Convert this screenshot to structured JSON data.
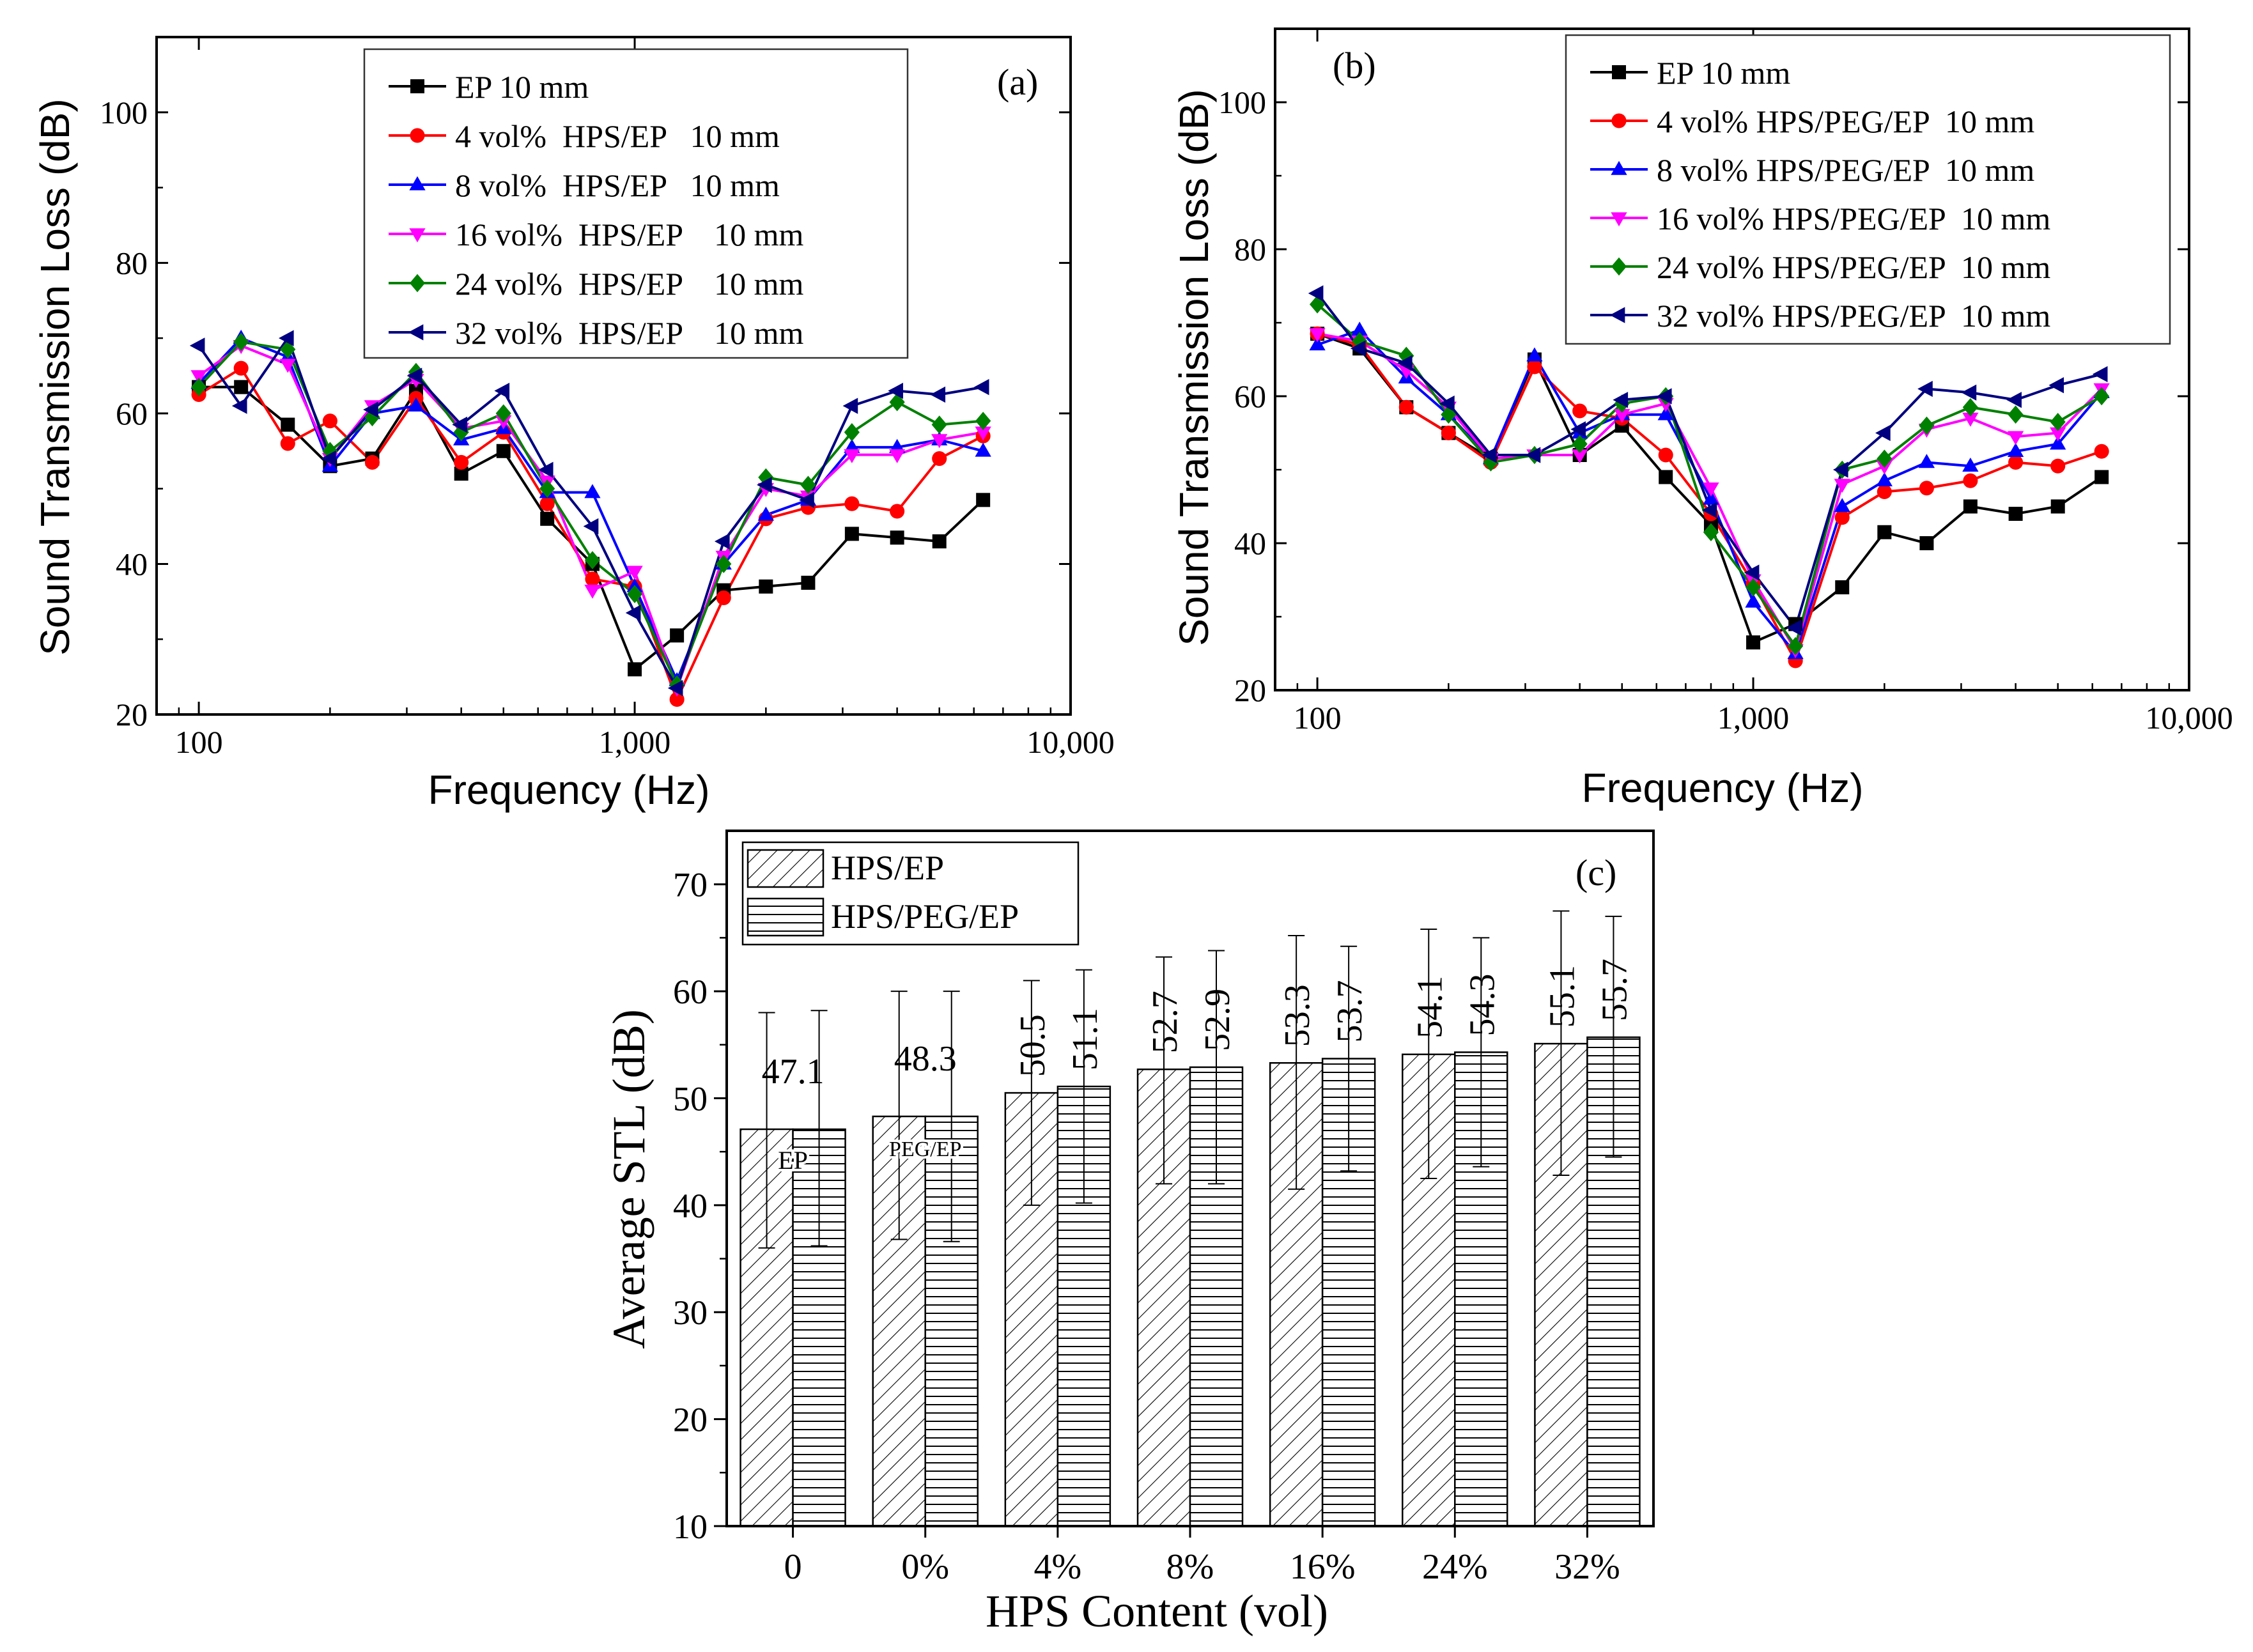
{
  "chart_data": [
    {
      "type": "line",
      "panel_label": "(a)",
      "xlabel": "Frequency (Hz)",
      "ylabel": "Sound Transmission Loss (dB)",
      "xscale": "log",
      "xlim": [
        80,
        10000
      ],
      "ylim": [
        20,
        110
      ],
      "xticks": [
        100,
        1000,
        10000
      ],
      "xtick_labels": [
        "100",
        "1,000",
        "10,000"
      ],
      "yticks": [
        20,
        40,
        60,
        80,
        100
      ],
      "ytick_labels": [
        "20",
        "40",
        "60",
        "80",
        "100"
      ],
      "legend_position": "top-center",
      "x": [
        100,
        125,
        160,
        200,
        250,
        315,
        400,
        500,
        630,
        800,
        1000,
        1250,
        1600,
        2000,
        2500,
        3150,
        4000,
        5000,
        6300
      ],
      "series": [
        {
          "name": "EP 10 mm",
          "color": "#000000",
          "marker": "square",
          "values": [
            63.5,
            63.5,
            58.5,
            53.0,
            54.0,
            63.0,
            52.0,
            55.0,
            46.0,
            40.0,
            26.0,
            30.5,
            36.5,
            37.0,
            37.5,
            44.0,
            43.5,
            43.0,
            48.5
          ]
        },
        {
          "name": "4 vol%  HPS/EP   10 mm",
          "color": "#ff0000",
          "marker": "circle",
          "values": [
            62.5,
            66.0,
            56.0,
            59.0,
            53.5,
            62.0,
            53.5,
            57.5,
            48.0,
            38.0,
            37.0,
            22.0,
            35.5,
            46.0,
            47.5,
            48.0,
            47.0,
            54.0,
            57.0
          ]
        },
        {
          "name": "8 vol%  HPS/EP   10 mm",
          "color": "#0000ff",
          "marker": "triangle-up",
          "values": [
            64.0,
            70.0,
            67.5,
            53.0,
            60.0,
            61.0,
            56.5,
            58.0,
            49.5,
            49.5,
            37.0,
            24.5,
            40.0,
            46.5,
            48.5,
            55.5,
            55.5,
            56.5,
            55.0
          ]
        },
        {
          "name": "16 vol%  HPS/EP    10 mm",
          "color": "#ff00ff",
          "marker": "triangle-down",
          "values": [
            65.0,
            69.0,
            66.5,
            54.0,
            61.0,
            64.5,
            58.0,
            59.0,
            51.0,
            36.5,
            39.0,
            23.5,
            41.0,
            50.0,
            49.0,
            54.5,
            54.5,
            56.5,
            57.5
          ]
        },
        {
          "name": "24 vol%  HPS/EP    10 mm",
          "color": "#008000",
          "marker": "diamond",
          "values": [
            63.5,
            69.5,
            68.5,
            55.0,
            59.5,
            65.5,
            57.5,
            60.0,
            50.0,
            40.5,
            36.0,
            24.0,
            40.0,
            51.5,
            50.5,
            57.5,
            61.5,
            58.5,
            59.0
          ]
        },
        {
          "name": "32 vol%  HPS/EP    10 mm",
          "color": "#000080",
          "marker": "triangle-left",
          "values": [
            69.0,
            61.0,
            70.0,
            54.0,
            60.5,
            65.0,
            58.5,
            63.0,
            52.5,
            45.0,
            33.5,
            23.5,
            43.0,
            50.5,
            48.5,
            61.0,
            63.0,
            62.5,
            63.5
          ]
        }
      ]
    },
    {
      "type": "line",
      "panel_label": "(b)",
      "xlabel": "Frequency (Hz)",
      "ylabel": "Sound Transmission Loss (dB)",
      "xscale": "log",
      "xlim": [
        80,
        10000
      ],
      "ylim": [
        20,
        110
      ],
      "xticks": [
        100,
        1000,
        10000
      ],
      "xtick_labels": [
        "100",
        "1,000",
        "10,000"
      ],
      "yticks": [
        20,
        40,
        60,
        80,
        100
      ],
      "ytick_labels": [
        "20",
        "40",
        "60",
        "80",
        "100"
      ],
      "legend_position": "top-right",
      "x": [
        100,
        125,
        160,
        200,
        250,
        315,
        400,
        500,
        630,
        800,
        1000,
        1250,
        1600,
        2000,
        2500,
        3150,
        4000,
        5000,
        6300
      ],
      "series": [
        {
          "name": "EP 10 mm",
          "color": "#000000",
          "marker": "square",
          "values": [
            68.5,
            66.5,
            58.5,
            55.0,
            51.5,
            65.0,
            52.0,
            56.0,
            49.0,
            42.5,
            26.5,
            29.0,
            34.0,
            41.5,
            40.0,
            45.0,
            44.0,
            45.0,
            49.0
          ]
        },
        {
          "name": "4 vol% HPS/PEG/EP  10 mm",
          "color": "#ff0000",
          "marker": "circle",
          "values": [
            68.5,
            67.0,
            58.5,
            55.0,
            51.0,
            64.0,
            58.0,
            57.0,
            52.0,
            44.0,
            34.5,
            24.0,
            43.5,
            47.0,
            47.5,
            48.5,
            51.0,
            50.5,
            52.5
          ]
        },
        {
          "name": "8 vol% HPS/PEG/EP  10 mm",
          "color": "#0000ff",
          "marker": "triangle-up",
          "values": [
            67.0,
            69.0,
            62.5,
            57.5,
            51.5,
            65.5,
            55.0,
            57.5,
            57.5,
            46.0,
            32.0,
            25.0,
            45.0,
            48.5,
            51.0,
            50.5,
            52.5,
            53.5,
            60.5
          ]
        },
        {
          "name": "16 vol% HPS/PEG/EP  10 mm",
          "color": "#ff00ff",
          "marker": "triangle-down",
          "values": [
            68.5,
            67.5,
            63.5,
            58.5,
            51.5,
            52.0,
            52.0,
            57.5,
            59.0,
            47.5,
            35.0,
            25.5,
            48.0,
            50.5,
            55.5,
            57.0,
            54.5,
            55.0,
            61.0
          ]
        },
        {
          "name": "24 vol% HPS/PEG/EP  10 mm",
          "color": "#008000",
          "marker": "diamond",
          "values": [
            72.5,
            67.5,
            65.5,
            57.5,
            51.0,
            52.0,
            53.5,
            59.0,
            60.0,
            41.5,
            34.0,
            26.0,
            50.0,
            51.5,
            56.0,
            58.5,
            57.5,
            56.5,
            60.0
          ]
        },
        {
          "name": "32 vol% HPS/PEG/EP  10 mm",
          "color": "#000080",
          "marker": "triangle-left",
          "values": [
            74.0,
            66.5,
            64.5,
            59.0,
            52.0,
            52.0,
            55.5,
            59.5,
            60.0,
            44.5,
            36.0,
            28.5,
            50.0,
            55.0,
            61.0,
            60.5,
            59.5,
            61.5,
            63.0
          ]
        }
      ]
    },
    {
      "type": "bar",
      "panel_label": "(c)",
      "xlabel": "HPS Content (vol)",
      "ylabel": "Average STL (dB)",
      "ylim": [
        10,
        75
      ],
      "yticks": [
        10,
        20,
        30,
        40,
        50,
        60,
        70
      ],
      "ytick_labels": [
        "10",
        "20",
        "30",
        "40",
        "50",
        "60",
        "70"
      ],
      "legend_position": "top-left",
      "categories": [
        "0",
        "0%",
        "4%",
        "8%",
        "16%",
        "24%",
        "32%"
      ],
      "bar_text": [
        "EP",
        "PEG/EP"
      ],
      "series": [
        {
          "name": "HPS/EP",
          "pattern": "diagonal",
          "values": [
            47.1,
            48.3,
            50.5,
            52.7,
            53.3,
            54.1,
            55.1
          ],
          "labels": [
            "47.1",
            "48.3",
            "50.5",
            "52.7",
            "53.3",
            "54.1",
            "55.1"
          ],
          "error_low": [
            36.0,
            36.8,
            40.0,
            42.0,
            41.5,
            42.5,
            42.8
          ],
          "error_high": [
            58.0,
            60.0,
            61.0,
            63.2,
            65.2,
            65.8,
            67.5
          ]
        },
        {
          "name": "HPS/PEG/EP",
          "pattern": "horizontal",
          "values": [
            47.1,
            48.3,
            51.1,
            52.9,
            53.7,
            54.3,
            55.7
          ],
          "labels": [
            "",
            "",
            "51.1",
            "52.9",
            "53.7",
            "54.3",
            "55.7"
          ],
          "error_low": [
            36.2,
            36.6,
            40.2,
            42.0,
            43.2,
            43.6,
            44.5
          ],
          "error_high": [
            58.2,
            60.0,
            62.0,
            63.8,
            64.2,
            65.0,
            67.0
          ]
        }
      ]
    }
  ]
}
